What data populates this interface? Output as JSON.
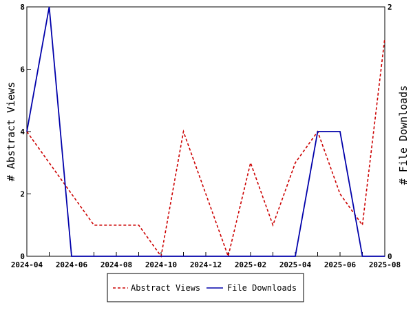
{
  "chart_data": {
    "type": "line",
    "x": [
      "2024-04",
      "2024-05",
      "2024-06",
      "2024-07",
      "2024-08",
      "2024-09",
      "2024-10",
      "2024-11",
      "2024-12",
      "2025-01",
      "2025-02",
      "2025-03",
      "2025-04",
      "2025-05",
      "2025-06",
      "2025-07",
      "2025-08"
    ],
    "x_tick_labels": [
      "2024-04",
      "2024-06",
      "2024-08",
      "2024-10",
      "2024-12",
      "2025-02",
      "2025-04",
      "2025-06",
      "2025-08"
    ],
    "series": [
      {
        "name": "Abstract Views",
        "axis": "left",
        "color": "#cc0000",
        "dash": true,
        "values": [
          4,
          3,
          2,
          1,
          1,
          1,
          0,
          4,
          2,
          0,
          3,
          1,
          3,
          4,
          2,
          1,
          7
        ]
      },
      {
        "name": "File Downloads",
        "axis": "right",
        "color": "#0000aa",
        "dash": false,
        "values": [
          1,
          2,
          0,
          0,
          0,
          0,
          0,
          0,
          0,
          0,
          0,
          0,
          0,
          1,
          1,
          0,
          0
        ]
      }
    ],
    "ylabel": "# Abstract Views",
    "ylabel_right": "# File Downloads",
    "ylim": [
      0,
      8
    ],
    "ylim_right": [
      0,
      2
    ],
    "y_ticks": [
      0,
      2,
      4,
      6,
      8
    ],
    "y_ticks_right": [
      0,
      2
    ],
    "grid": false,
    "legend_position": "bottom"
  }
}
